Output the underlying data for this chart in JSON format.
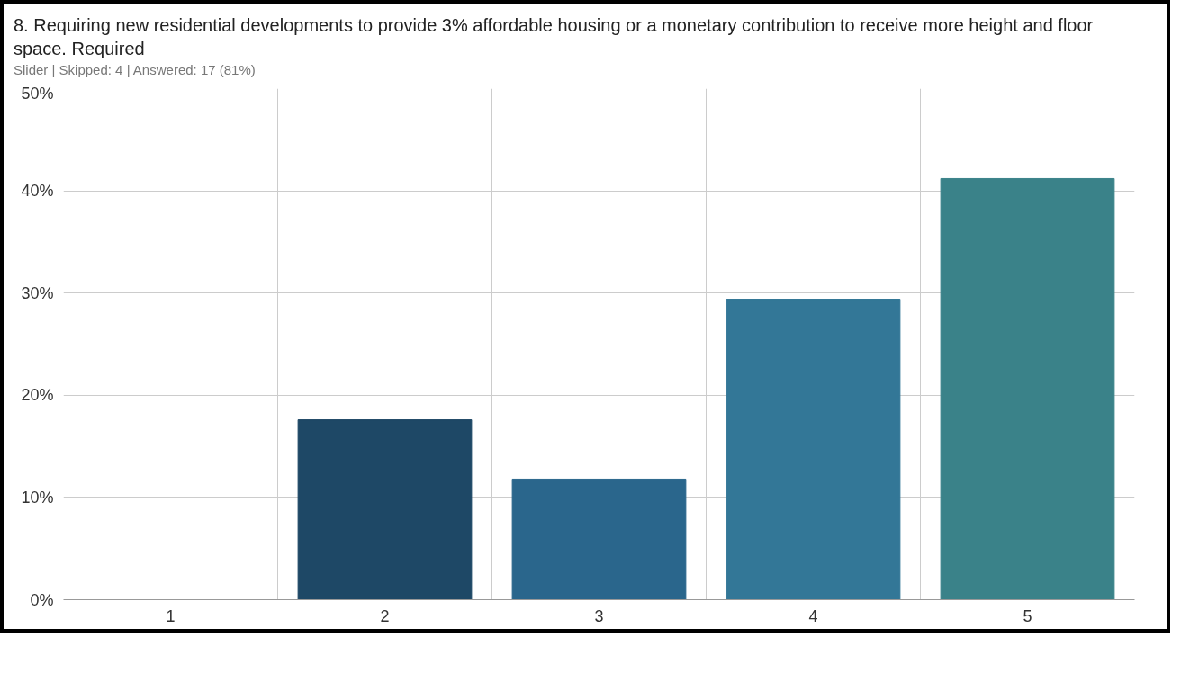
{
  "chart_data": {
    "type": "bar",
    "title": "8. Requiring new residential developments to provide 3% affordable housing or a monetary contribution to receive more height and floor space. Required",
    "subtitle": "Slider | Skipped: 4 | Answered: 17 (81%)",
    "categories": [
      "1",
      "2",
      "3",
      "4",
      "5"
    ],
    "values": [
      0,
      17.6,
      11.8,
      29.4,
      41.2
    ],
    "colors": [
      "#1e4866",
      "#1e4866",
      "#2a668c",
      "#337797",
      "#3a8289"
    ],
    "ylim": [
      0,
      50
    ],
    "yticks": [
      {
        "value": 0,
        "label": "0%"
      },
      {
        "value": 10,
        "label": "10%"
      },
      {
        "value": 20,
        "label": "20%"
      },
      {
        "value": 30,
        "label": "30%"
      },
      {
        "value": 40,
        "label": "40%"
      },
      {
        "value": 50,
        "label": "50%"
      }
    ],
    "grid": true
  }
}
